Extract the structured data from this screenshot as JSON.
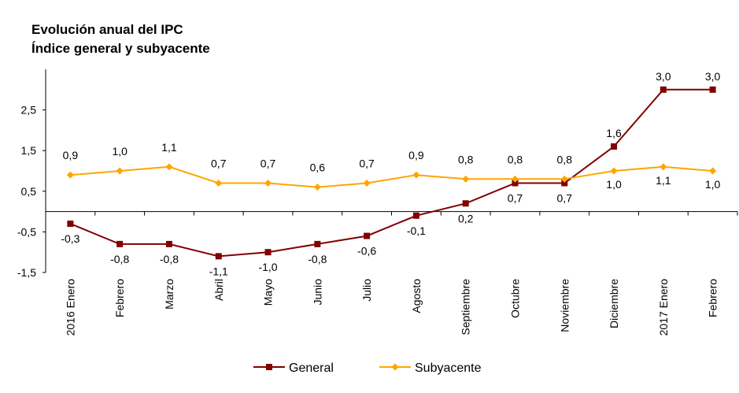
{
  "chart_data": {
    "type": "line",
    "title": "Evolución anual del IPC",
    "subtitle": "Índice general y subyacente",
    "categories": [
      "2016 Enero",
      "Febrero",
      "Marzo",
      "Abril",
      "Mayo",
      "Junio",
      "Julio",
      "Agosto",
      "Septiembre",
      "Octubre",
      "Noviembre",
      "Diciembre",
      "2017 Enero",
      "Febrero"
    ],
    "yticks": [
      2.5,
      1.5,
      0.5,
      -0.5,
      -1.5
    ],
    "ytick_labels": [
      "2,5",
      "1,5",
      "0,5",
      "-0,5",
      "-1,5"
    ],
    "ylim": [
      -1.5,
      3.5
    ],
    "xlabel": "",
    "ylabel": "",
    "legend_position": "bottom",
    "series": [
      {
        "name": "General",
        "color": "#800000",
        "marker": "square",
        "values": [
          -0.3,
          -0.8,
          -0.8,
          -1.1,
          -1.0,
          -0.8,
          -0.6,
          -0.1,
          0.2,
          0.7,
          0.7,
          1.6,
          3.0,
          3.0
        ],
        "labels": [
          "-0,3",
          "-0,8",
          "-0,8",
          "-1,1",
          "-1,0",
          "-0,8",
          "-0,6",
          "-0,1",
          "0,2",
          "0,7",
          "0,7",
          "1,6",
          "3,0",
          "3,0"
        ]
      },
      {
        "name": "Subyacente",
        "color": "#FFA500",
        "marker": "diamond",
        "values": [
          0.9,
          1.0,
          1.1,
          0.7,
          0.7,
          0.6,
          0.7,
          0.9,
          0.8,
          0.8,
          0.8,
          1.0,
          1.1,
          1.0
        ],
        "labels": [
          "0,9",
          "1,0",
          "1,1",
          "0,7",
          "0,7",
          "0,6",
          "0,7",
          "0,9",
          "0,8",
          "0,8",
          "0,8",
          "1,0",
          "1,1",
          "1,0"
        ]
      }
    ]
  }
}
